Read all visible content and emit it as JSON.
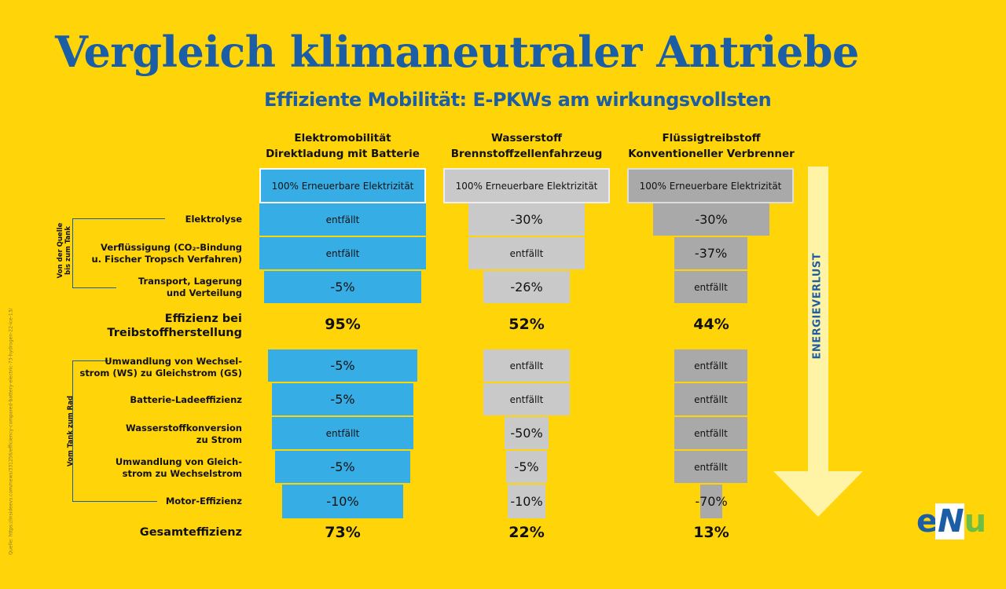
{
  "title": "Vergleich klimaneutraler Antriebe",
  "subtitle": "Effiziente Mobilität: E-PKWs am wirkungsvollsten",
  "columns": [
    {
      "line1": "Elektromobilität",
      "line2": "Direktladung mit Batterie"
    },
    {
      "line1": "Wasserstoff",
      "line2": "Brennstoffzellenfahrzeug"
    },
    {
      "line1": "Flüssigtreibstoff",
      "line2": "Konventioneller Verbrenner"
    }
  ],
  "source_label": "100% Erneuerbare Elektrizität",
  "groups": {
    "source_to_tank": {
      "line1": "Von der Quelle",
      "line2": "bis zum Tank"
    },
    "tank_to_wheel": "Vom Tank zum Rad"
  },
  "rows": {
    "elektrolyse": "Elektrolyse",
    "verfluessigung": {
      "line1": "Verflüssigung (CO₂-Bindung",
      "line2": "u. Fischer Tropsch Verfahren)"
    },
    "transport": {
      "line1": "Transport, Lagerung",
      "line2": "und Verteilung"
    },
    "effizienz": {
      "line1": "Effizienz bei",
      "line2": "Treibstoffherstellung"
    },
    "umwandlung_ws_gs": {
      "line1": "Umwandlung von Wechsel-",
      "line2": "strom (WS) zu Gleichstrom (GS)"
    },
    "batterie": "Batterie-Ladeeffizienz",
    "wasserstoffkonversion": {
      "line1": "Wasserstoffkonversion",
      "line2": "zu Strom"
    },
    "umwandlung_gs_ws": {
      "line1": "Umwandlung von Gleich-",
      "line2": "strom zu Wechselstrom"
    },
    "motor": "Motor-Effizienz",
    "gesamt": "Gesamteffizienz"
  },
  "values": {
    "elektro": {
      "elektrolyse": "entfällt",
      "verfluessigung": "entfällt",
      "transport": "-5%",
      "effizienz": "95%",
      "umwandlung_ws_gs": "-5%",
      "batterie": "-5%",
      "wasserstoffkonversion": "entfällt",
      "umwandlung_gs_ws": "-5%",
      "motor": "-10%",
      "gesamt": "73%"
    },
    "wasserstoff": {
      "elektrolyse": "-30%",
      "verfluessigung": "entfällt",
      "transport": "-26%",
      "effizienz": "52%",
      "umwandlung_ws_gs": "entfällt",
      "batterie": "entfällt",
      "wasserstoffkonversion": "-50%",
      "umwandlung_gs_ws": "-5%",
      "motor": "-10%",
      "gesamt": "22%"
    },
    "fluessig": {
      "elektrolyse": "-30%",
      "verfluessigung": "-37%",
      "transport": "entfällt",
      "effizienz": "44%",
      "umwandlung_ws_gs": "entfällt",
      "batterie": "entfällt",
      "wasserstoffkonversion": "entfällt",
      "umwandlung_gs_ws": "entfällt",
      "motor": "-70%",
      "gesamt": "13%"
    }
  },
  "arrow_label": "ENERGIEVERLUST",
  "source_note": "Quelle: https://insideevs.com/news/331256/efficiency-compared-battery-electric-73-hydrogen-22-ice-13/",
  "logo": {
    "part1": "e",
    "part2": "N",
    "part3": "u"
  },
  "colors": {
    "background": "#FFD50A",
    "title": "#1B5EA6",
    "electric": "#36AEE5",
    "hydrogen": "#C9C9C9",
    "fuel": "#A9A9A9",
    "arrow": "#FFF3A6"
  }
}
